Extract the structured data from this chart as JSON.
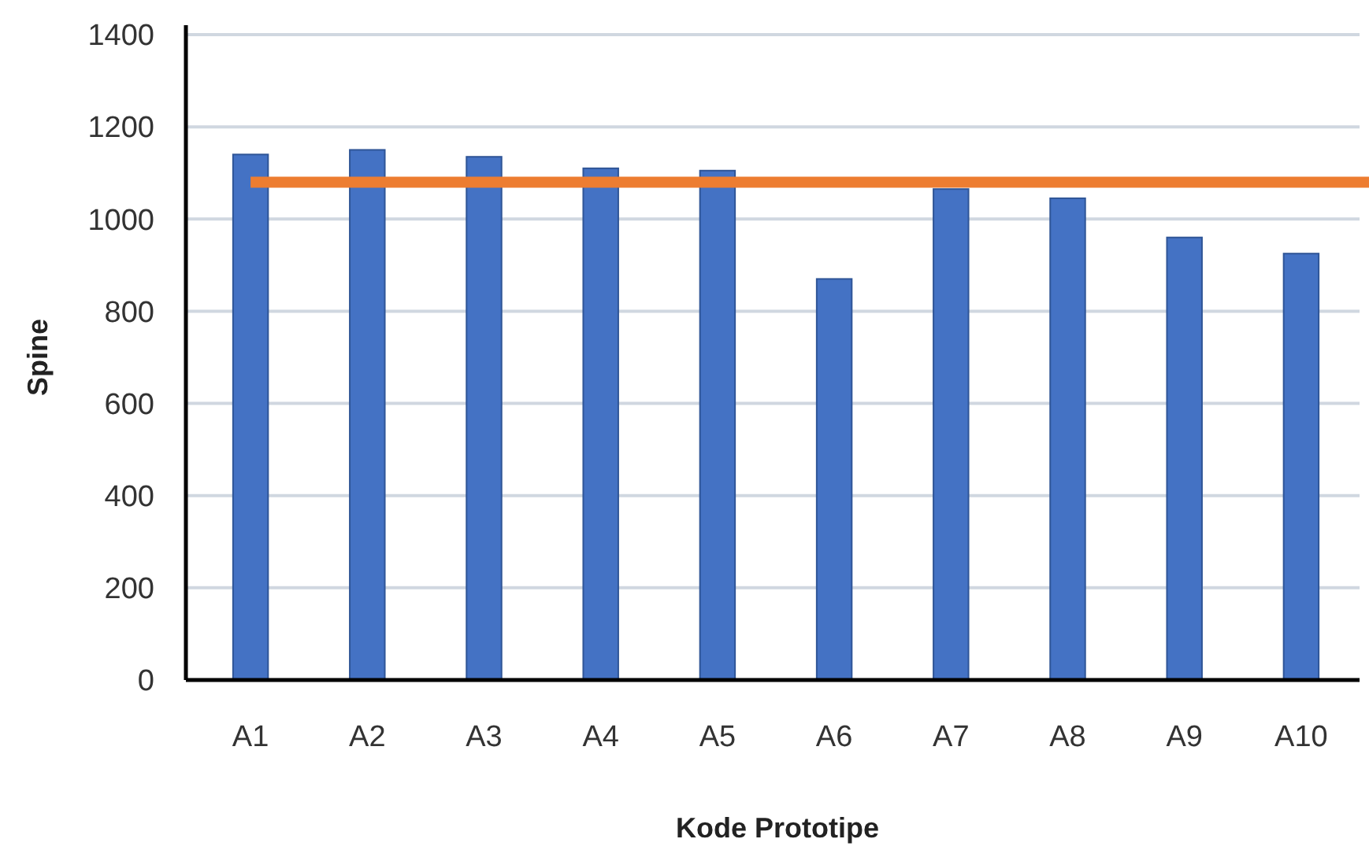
{
  "chart_data": {
    "type": "bar",
    "xlabel": "Kode Prototipe",
    "ylabel": "Spine",
    "categories": [
      "A1",
      "A2",
      "A3",
      "A4",
      "A5",
      "A6",
      "A7",
      "A8",
      "A9",
      "A10"
    ],
    "values": [
      1140,
      1150,
      1135,
      1110,
      1105,
      870,
      1065,
      1045,
      960,
      925
    ],
    "color": "#4472c4",
    "ylim": [
      0,
      1400
    ],
    "yticks": [
      0,
      200,
      400,
      600,
      800,
      1000,
      1200,
      1400
    ],
    "grid": "y",
    "ref_lines": [
      {
        "axis": "y",
        "value": 1080,
        "color": "#ed7d31"
      }
    ]
  }
}
